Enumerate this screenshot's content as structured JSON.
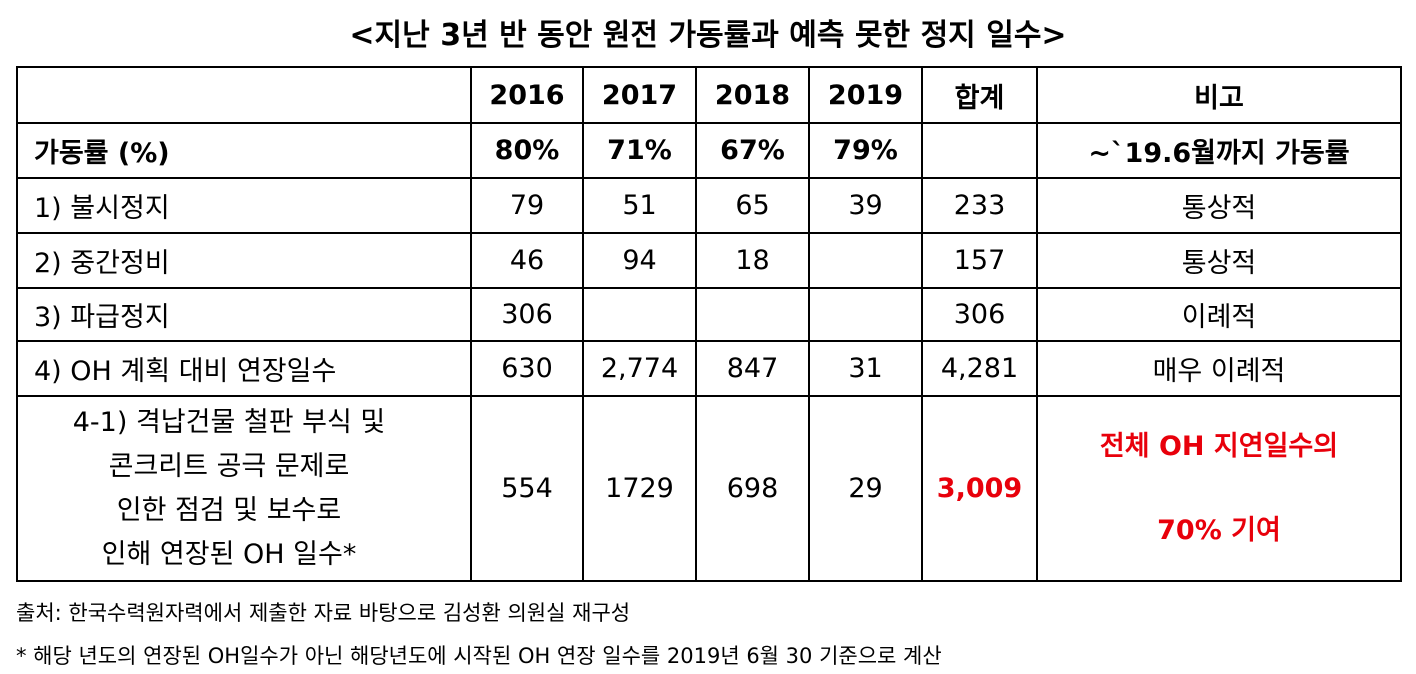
{
  "title": "<지난 3년 반 동안 원전 가동률과 예측 못한 정지 일수>",
  "table": {
    "columns": [
      "2016",
      "2017",
      "2018",
      "2019",
      "합계",
      "비고"
    ],
    "rows": [
      [
        "가동률 (%)",
        "80%",
        "71%",
        "67%",
        "79%",
        null,
        "~`19.6월까지 가동률"
      ],
      [
        "1) 불시정지",
        "79",
        "51",
        "65",
        "39",
        "233",
        "통상적"
      ],
      [
        "2) 중간정비",
        "46",
        "94",
        "18",
        null,
        "157",
        "통상적"
      ],
      [
        "3) 파급정지",
        "306",
        null,
        null,
        null,
        "306",
        "이례적"
      ],
      [
        "4) OH 계획 대비 연장일수",
        "630",
        "2,774",
        "847",
        "31",
        "4,281",
        "매우 이례적"
      ],
      [
        [
          "4-1) 격납건물 철판 부식 및",
          "콘크리트 공극 문제로",
          "인한 점검 및 보수로",
          "인해 연장된 OH 일수*"
        ],
        "554",
        "1729",
        "698",
        "29",
        "3,009",
        [
          "전체 OH 지연일수의",
          "70% 기여"
        ]
      ]
    ]
  },
  "notes": [
    "출처: 한국수력원자력에서 제출한 자료 바탕으로 김성환 의원실 재구성",
    "* 해당 년도의 연장된 OH일수가 아닌 해당년도에 시작된 OH 연장 일수를 2019년 6월 30 기준으로 계산"
  ]
}
